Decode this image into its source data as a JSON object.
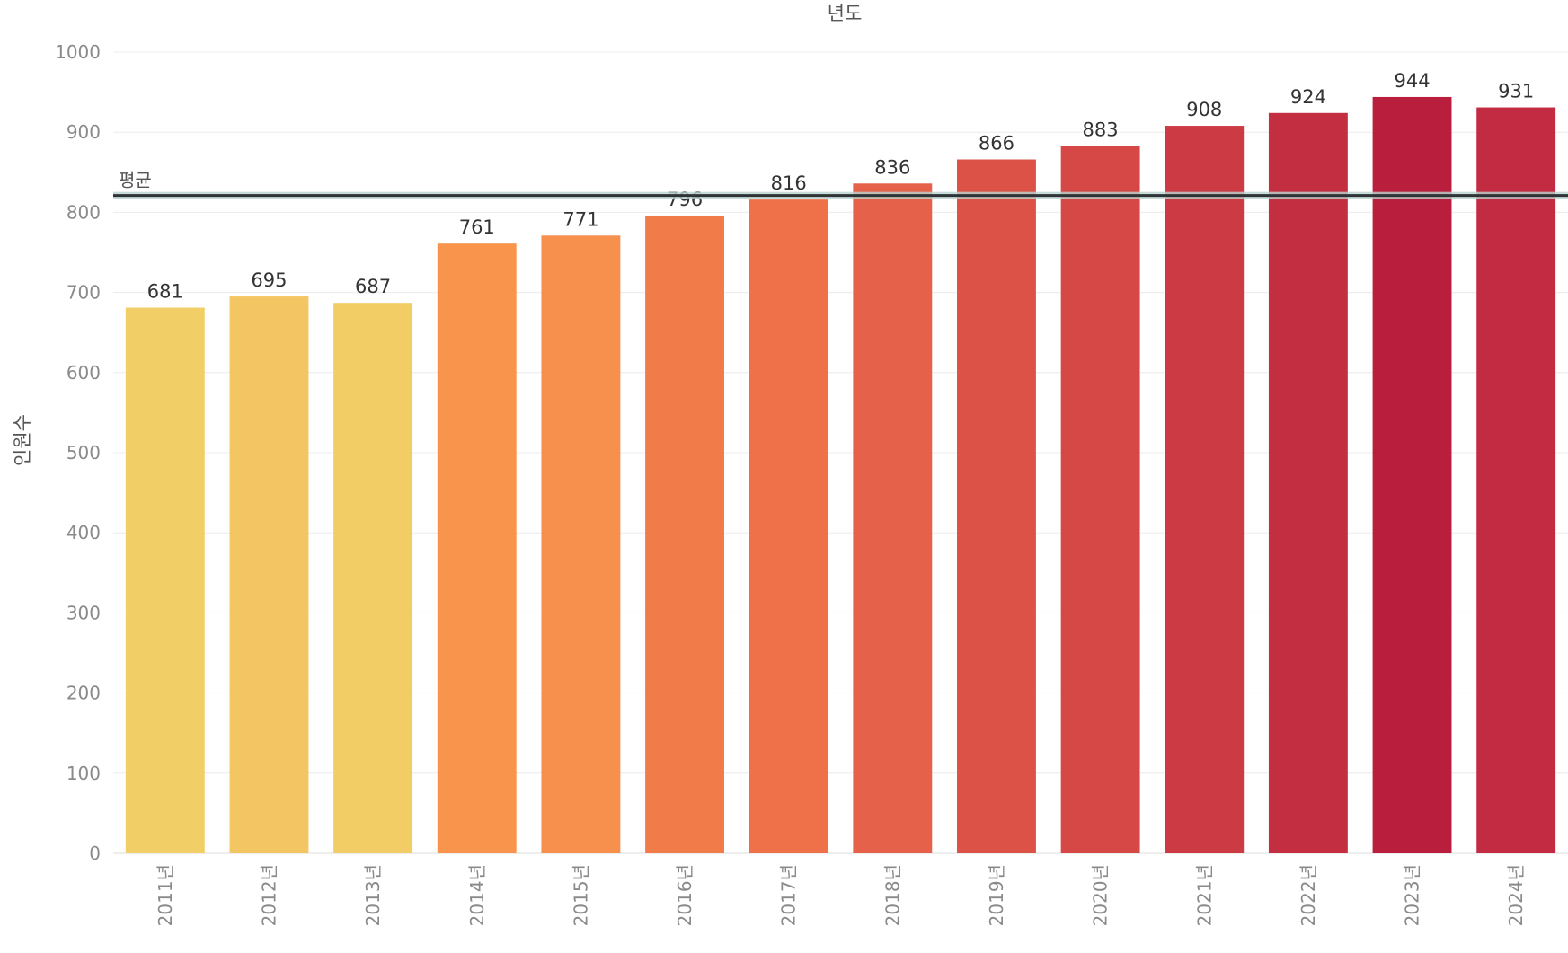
{
  "chart_data": {
    "type": "bar",
    "title": "년도",
    "xlabel": "",
    "ylabel": "인원수",
    "ylim": [
      0,
      1000
    ],
    "yticks": [
      0,
      100,
      200,
      300,
      400,
      500,
      600,
      700,
      800,
      900,
      1000
    ],
    "grid": true,
    "categories": [
      "2011년",
      "2012년",
      "2013년",
      "2014년",
      "2015년",
      "2016년",
      "2017년",
      "2018년",
      "2019년",
      "2020년",
      "2021년",
      "2022년",
      "2023년",
      "2024년"
    ],
    "values": [
      681,
      695,
      687,
      761,
      771,
      796,
      816,
      836,
      866,
      883,
      908,
      924,
      944,
      931
    ],
    "colors": [
      "#f2cf66",
      "#f3c563",
      "#f2cd65",
      "#f8944c",
      "#f78f4d",
      "#f17c4a",
      "#ee714a",
      "#e5614a",
      "#dc5246",
      "#d54845",
      "#cc3a43",
      "#c42e41",
      "#b91f3d",
      "#c22b41"
    ],
    "reference_line": {
      "label": "평균",
      "value": 821,
      "color": "#2e3436"
    }
  }
}
